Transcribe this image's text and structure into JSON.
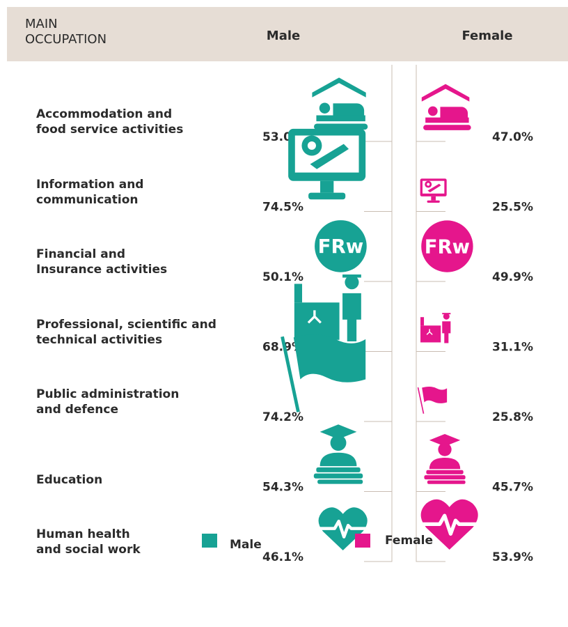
{
  "chart_data": {
    "type": "icon",
    "header": "MAIN\nOCCUPATION",
    "currency_label": "FRw",
    "categories": [
      "Accommodation and\nfood service activities",
      "Information and\ncommunication",
      "Financial and\nInsurance activities",
      "Professional, scientific and\ntechnical activities",
      "Public administration\nand defence",
      "Education",
      "Human health\nand social work"
    ],
    "series": [
      {
        "name": "Male",
        "color": "#17a294",
        "values": [
          53.0,
          74.5,
          50.1,
          68.9,
          74.2,
          54.3,
          46.1
        ],
        "value_labels": [
          "53.0%",
          "74.5%",
          "50.1%",
          "68.9%",
          "74.2%",
          "54.3%",
          "46.1%"
        ]
      },
      {
        "name": "Female",
        "color": "#e5168c",
        "values": [
          47.0,
          25.5,
          49.9,
          31.1,
          25.8,
          45.7,
          53.9
        ],
        "value_labels": [
          "47.0%",
          "25.5%",
          "49.9%",
          "31.1%",
          "25.8%",
          "45.7%",
          "53.9%"
        ]
      }
    ],
    "legend": true
  }
}
